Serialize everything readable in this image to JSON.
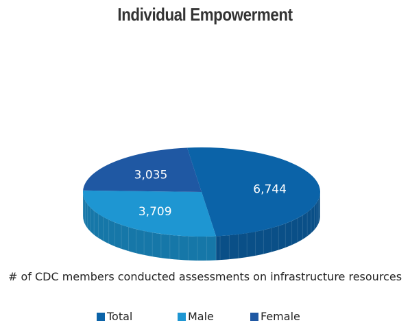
{
  "chart_data": {
    "type": "pie",
    "title": "Individual Empowerment",
    "xlabel": "# of CDC members conducted assessments on infrastructure resources",
    "slices": [
      {
        "label": "Total",
        "value": 6744,
        "display": "6,744",
        "color": "#0b63a8",
        "side_color": "#0a4f87"
      },
      {
        "label": "Male",
        "value": 3709,
        "display": "3,709",
        "color": "#1e96d2",
        "side_color": "#1677a8"
      },
      {
        "label": "Female",
        "value": 3035,
        "display": "3,035",
        "color": "#1f58a3",
        "side_color": "#18457f"
      }
    ],
    "legend": {
      "position": "bottom",
      "items": [
        "Total",
        "Male",
        "Female"
      ]
    },
    "style": "3d"
  }
}
